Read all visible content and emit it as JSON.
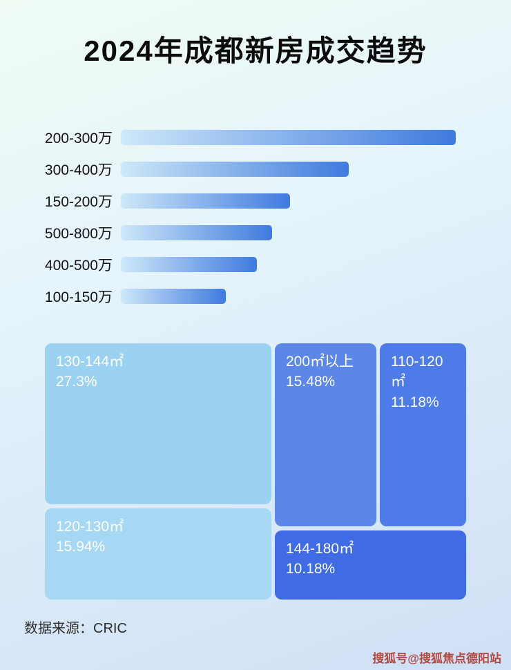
{
  "page": {
    "title": "2024年成都新房成交趋势",
    "source": "数据来源：CRIC",
    "watermark": "搜狐号@搜狐焦点德阳站"
  },
  "colors": {
    "bar_gradient_start": "#cde8f9",
    "bar_gradient_end": "#3f7ade",
    "treemap_blocks": [
      "#9cd2f1",
      "#a6d8f4",
      "#5b87e9",
      "#4d7be7",
      "#3f6ce4"
    ],
    "watermark_red": "#b0493f"
  },
  "chart_data": [
    {
      "type": "bar",
      "orientation": "horizontal",
      "categories": [
        "200-300万",
        "300-400万",
        "150-200万",
        "500-800万",
        "400-500万",
        "100-150万"
      ],
      "values": [
        100,
        68,
        50.5,
        45.2,
        40.6,
        31.3
      ],
      "value_unit": "relative bar length, % of longest bar (no axis or data labels shown)",
      "legend": "none",
      "grid": "off"
    },
    {
      "type": "treemap",
      "items": [
        {
          "label": "130-144㎡",
          "pct_text": "27.3%",
          "value": 27.3
        },
        {
          "label": "120-130㎡",
          "pct_text": "15.94%",
          "value": 15.94
        },
        {
          "label": "200㎡以上",
          "pct_text": "15.48%",
          "value": 15.48
        },
        {
          "label": "110-120㎡",
          "pct_text": "11.18%",
          "value": 11.18
        },
        {
          "label": "144-180㎡",
          "pct_text": "10.18%",
          "value": 10.18
        }
      ]
    }
  ]
}
